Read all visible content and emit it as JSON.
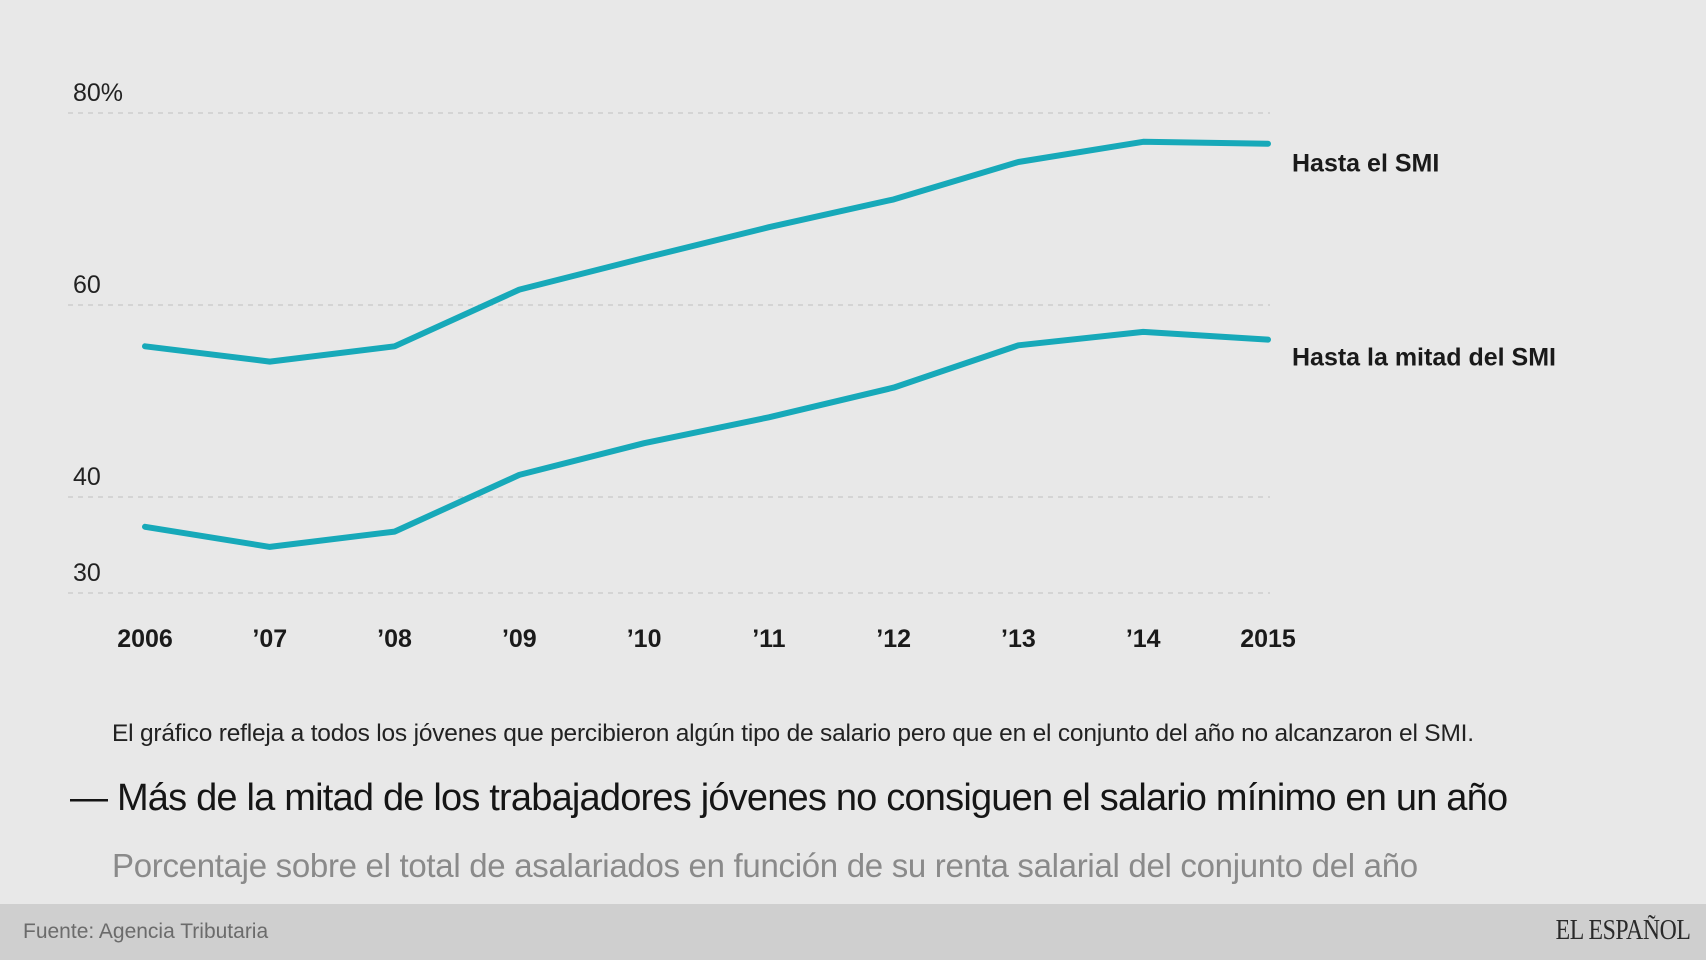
{
  "chart_data": {
    "type": "line",
    "title": "— Más de la mitad de los trabajadores jóvenes no consiguen el salario mínimo en un año",
    "subtitle": "Porcentaje sobre el total de asalariados en función de su renta salarial del conjunto del año",
    "note": "El gráfico refleja a todos los jóvenes que percibieron algún tipo de salario pero que en el conjunto del año no alcanzaron el SMI.",
    "xlabel": "",
    "ylabel": "",
    "x": [
      2006,
      2007,
      2008,
      2009,
      2010,
      2011,
      2012,
      2013,
      2014,
      2015
    ],
    "x_tick_labels": [
      "2006",
      "’07",
      "’08",
      "’09",
      "’10",
      "’11",
      "’12",
      "’13",
      "’14",
      "2015"
    ],
    "y_ticks": [
      30,
      40,
      60,
      80
    ],
    "y_tick_labels": [
      "30",
      "40",
      "60",
      "80%"
    ],
    "ylim": [
      30,
      80
    ],
    "grid": true,
    "legend": "direct labels at right end of lines",
    "series": [
      {
        "name": "Hasta el SMI",
        "color": "#17a9b9",
        "values": [
          55.7,
          54.1,
          55.7,
          61.6,
          64.9,
          68.1,
          71.0,
          74.9,
          77.0,
          76.8
        ]
      },
      {
        "name": "Hasta la mitad del SMI",
        "color": "#17a9b9",
        "values": [
          36.9,
          34.8,
          36.4,
          42.3,
          45.6,
          48.3,
          51.4,
          55.8,
          57.2,
          56.4
        ]
      }
    ]
  },
  "footer": {
    "source": "Fuente: Agencia Tributaria",
    "logo": "EL ESPAÑOL"
  },
  "colors": {
    "background": "#e8e8e8",
    "footer_background": "#cfcfcf",
    "line": "#17a9b9"
  }
}
